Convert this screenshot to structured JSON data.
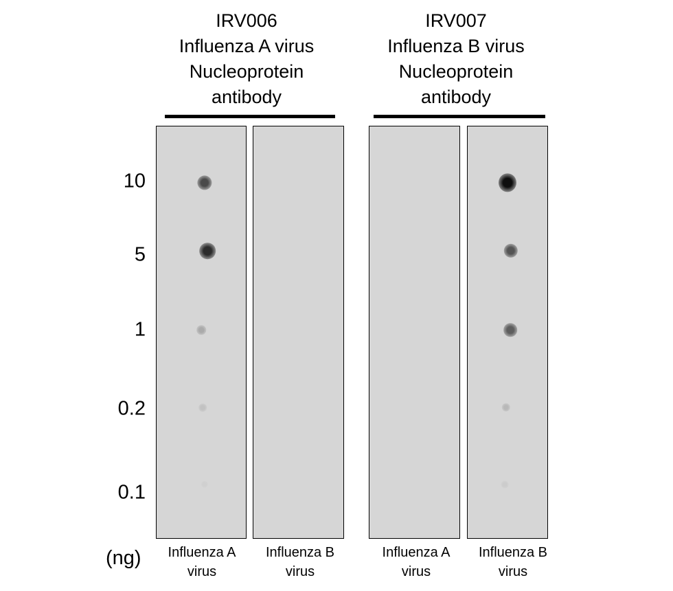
{
  "groups": [
    {
      "title_lines": [
        "IRV006",
        "Influenza A virus",
        "Nucleoprotein",
        "antibody"
      ]
    },
    {
      "title_lines": [
        "IRV007",
        "Influenza B virus",
        "Nucleoprotein",
        "antibody"
      ]
    }
  ],
  "amounts": [
    "10",
    "5",
    "1",
    "0.2",
    "0.1"
  ],
  "unit": "(ng)",
  "lanes": [
    {
      "label_lines": [
        "Influenza A",
        "virus"
      ],
      "signal": [
        0.7,
        0.85,
        0.22,
        0.1,
        0.03
      ]
    },
    {
      "label_lines": [
        "Influenza B",
        "virus"
      ],
      "signal": [
        0,
        0,
        0,
        0,
        0
      ]
    },
    {
      "label_lines": [
        "Influenza A",
        "virus"
      ],
      "signal": [
        0,
        0,
        0,
        0,
        0
      ]
    },
    {
      "label_lines": [
        "Influenza B",
        "virus"
      ],
      "signal": [
        1.0,
        0.65,
        0.6,
        0.15,
        0.05
      ]
    }
  ]
}
